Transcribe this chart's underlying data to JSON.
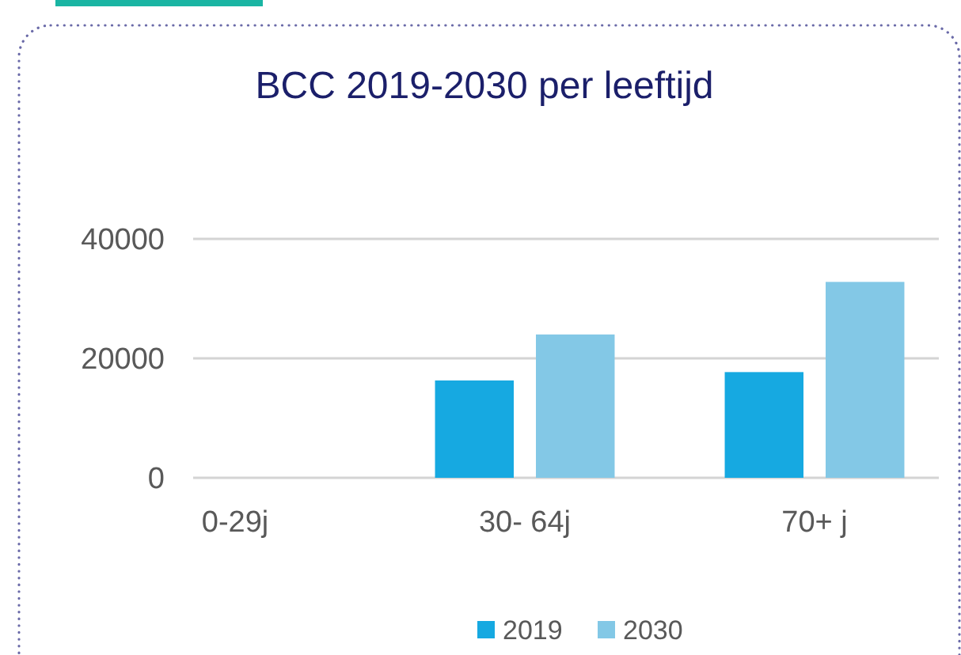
{
  "chart_data": {
    "type": "bar",
    "title": "BCC 2019-2030 per leeftijd",
    "categories": [
      "0-29j",
      "30- 64j",
      "70+ j"
    ],
    "series": [
      {
        "name": "2019",
        "color": "#16a9e1",
        "values": [
          0,
          16300,
          17700
        ]
      },
      {
        "name": "2030",
        "color": "#83c8e6",
        "values": [
          0,
          24000,
          32800
        ]
      }
    ],
    "ylim": [
      0,
      40000
    ],
    "yticks": [
      0,
      20000,
      40000
    ],
    "grid": "y",
    "legend": "bottom"
  }
}
